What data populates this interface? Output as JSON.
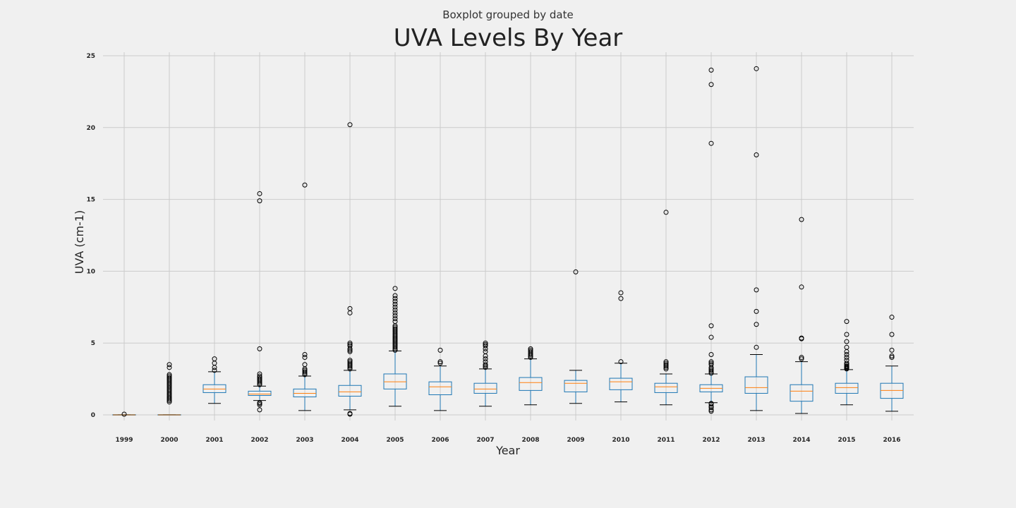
{
  "chart_data": {
    "type": "box",
    "suptitle": "Boxplot grouped by date",
    "title": "UVA Levels By Year",
    "xlabel": "Year",
    "ylabel": "UVA (cm-1)",
    "ylim": [
      -0.4,
      25.3
    ],
    "yticks": [
      0,
      5,
      10,
      15,
      20,
      25
    ],
    "grid": true,
    "colors": {
      "background": "#f0f0f0",
      "grid": "#cbcbcb",
      "box": "#1f77b4",
      "whisker": "#1f77b4",
      "cap": "#000000",
      "median": "#ff7f0e",
      "flier": "#000000"
    },
    "categories": [
      "1999",
      "2000",
      "2001",
      "2002",
      "2003",
      "2004",
      "2005",
      "2006",
      "2007",
      "2008",
      "2009",
      "2010",
      "2011",
      "2012",
      "2013",
      "2014",
      "2015",
      "2016"
    ],
    "boxes": [
      {
        "q1": 0.0,
        "median": 0.0,
        "q3": 0.02,
        "whislo": 0.0,
        "whishi": 0.02,
        "fliers": [
          0.05
        ]
      },
      {
        "q1": 0.0,
        "median": 0.0,
        "q3": 0.02,
        "whislo": 0.0,
        "whishi": 0.02,
        "fliers": [
          0.9,
          1.0,
          1.1,
          1.2,
          1.3,
          1.4,
          1.5,
          1.6,
          1.7,
          1.8,
          1.9,
          2.0,
          2.1,
          2.2,
          2.3,
          2.4,
          2.5,
          2.6,
          2.7,
          2.8,
          3.3,
          3.5
        ]
      },
      {
        "q1": 1.55,
        "median": 1.8,
        "q3": 2.1,
        "whislo": 0.8,
        "whishi": 3.0,
        "fliers": [
          3.1,
          3.3,
          3.6,
          3.9
        ]
      },
      {
        "q1": 1.35,
        "median": 1.45,
        "q3": 1.65,
        "whislo": 1.0,
        "whishi": 2.0,
        "fliers": [
          0.35,
          0.7,
          0.8,
          0.85,
          2.1,
          2.2,
          2.3,
          2.4,
          2.5,
          2.6,
          2.7,
          2.85,
          4.6,
          14.9,
          15.4
        ]
      },
      {
        "q1": 1.25,
        "median": 1.5,
        "q3": 1.8,
        "whislo": 0.3,
        "whishi": 2.7,
        "fliers": [
          2.8,
          2.9,
          3.0,
          3.1,
          3.2,
          3.5,
          4.0,
          4.2,
          16.0
        ]
      },
      {
        "q1": 1.3,
        "median": 1.6,
        "q3": 2.05,
        "whislo": 0.35,
        "whishi": 3.1,
        "fliers": [
          0.05,
          0.1,
          3.2,
          3.3,
          3.4,
          3.5,
          3.6,
          3.7,
          3.8,
          4.4,
          4.5,
          4.6,
          4.8,
          4.9,
          5.0,
          7.1,
          7.4,
          20.2
        ]
      },
      {
        "q1": 1.8,
        "median": 2.3,
        "q3": 2.85,
        "whislo": 0.6,
        "whishi": 4.45,
        "fliers": [
          4.5,
          4.6,
          4.7,
          4.8,
          4.9,
          5.0,
          5.1,
          5.2,
          5.3,
          5.4,
          5.5,
          5.6,
          5.7,
          5.8,
          5.9,
          6.0,
          6.1,
          6.2,
          6.5,
          6.7,
          6.9,
          7.1,
          7.3,
          7.5,
          7.7,
          7.9,
          8.1,
          8.3,
          8.8
        ]
      },
      {
        "q1": 1.4,
        "median": 1.95,
        "q3": 2.3,
        "whislo": 0.3,
        "whishi": 3.4,
        "fliers": [
          3.6,
          3.7,
          4.5
        ]
      },
      {
        "q1": 1.5,
        "median": 1.8,
        "q3": 2.2,
        "whislo": 0.6,
        "whishi": 3.2,
        "fliers": [
          3.3,
          3.4,
          3.5,
          3.7,
          3.9,
          4.1,
          4.4,
          4.6,
          4.8,
          4.9,
          5.0
        ]
      },
      {
        "q1": 1.7,
        "median": 2.25,
        "q3": 2.6,
        "whislo": 0.7,
        "whishi": 3.9,
        "fliers": [
          4.0,
          4.1,
          4.2,
          4.3,
          4.4,
          4.5,
          4.6
        ]
      },
      {
        "q1": 1.6,
        "median": 2.2,
        "q3": 2.4,
        "whislo": 0.8,
        "whishi": 3.1,
        "fliers": [
          9.95
        ]
      },
      {
        "q1": 1.75,
        "median": 2.3,
        "q3": 2.55,
        "whislo": 0.9,
        "whishi": 3.6,
        "fliers": [
          3.7,
          8.1,
          8.5
        ]
      },
      {
        "q1": 1.55,
        "median": 1.95,
        "q3": 2.2,
        "whislo": 0.7,
        "whishi": 2.85,
        "fliers": [
          3.2,
          3.3,
          3.4,
          3.5,
          3.6,
          3.7,
          14.1
        ]
      },
      {
        "q1": 1.6,
        "median": 1.85,
        "q3": 2.1,
        "whislo": 0.85,
        "whishi": 2.85,
        "fliers": [
          0.25,
          0.35,
          0.5,
          0.6,
          0.75,
          0.8,
          2.9,
          3.0,
          3.1,
          3.2,
          3.3,
          3.5,
          3.6,
          3.7,
          4.2,
          5.4,
          6.2,
          18.9,
          23.0,
          24.0
        ]
      },
      {
        "q1": 1.5,
        "median": 1.9,
        "q3": 2.65,
        "whislo": 0.3,
        "whishi": 4.2,
        "fliers": [
          4.7,
          6.3,
          7.2,
          8.7,
          18.1,
          24.1
        ]
      },
      {
        "q1": 0.95,
        "median": 1.65,
        "q3": 2.1,
        "whislo": 0.1,
        "whishi": 3.7,
        "fliers": [
          3.9,
          4.0,
          5.3,
          5.35,
          8.9,
          13.6
        ]
      },
      {
        "q1": 1.5,
        "median": 1.9,
        "q3": 2.2,
        "whislo": 0.7,
        "whishi": 3.15,
        "fliers": [
          3.2,
          3.25,
          3.3,
          3.35,
          3.4,
          3.5,
          3.6,
          3.8,
          4.0,
          4.2,
          4.4,
          4.7,
          5.1,
          5.6,
          6.5
        ]
      },
      {
        "q1": 1.15,
        "median": 1.7,
        "q3": 2.2,
        "whislo": 0.25,
        "whishi": 3.4,
        "fliers": [
          4.0,
          4.1,
          4.5,
          5.6,
          6.8
        ]
      }
    ]
  }
}
